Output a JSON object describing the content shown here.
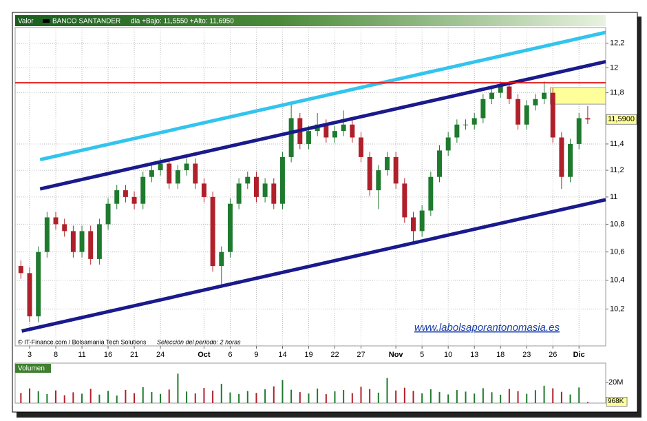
{
  "header": {
    "label": "Valor",
    "name": "BANCO SANTANDER",
    "range": "dia +Bajo: 11,5550 +Alto: 11,6950"
  },
  "footer": {
    "credit": "© IT-Finance.com / Bolsamania Tech Solutions",
    "period": "Selección del período: 2 horas",
    "watermark": "www.labolsaporantonomasia.es"
  },
  "chart_data": {
    "type": "candlestick",
    "x": [
      -1,
      0,
      1,
      2,
      3,
      4,
      5,
      6,
      7,
      8,
      9,
      10,
      11,
      12,
      13,
      14,
      15,
      16,
      17,
      18,
      19,
      20,
      21,
      22,
      23,
      24,
      25,
      26,
      27,
      28,
      29,
      30,
      31,
      32,
      33,
      34,
      35,
      36,
      37,
      38,
      39,
      40,
      41,
      42,
      43,
      44,
      45,
      46,
      47,
      48,
      49,
      50,
      51,
      52,
      53,
      54,
      55,
      56,
      57,
      58,
      59,
      60,
      61,
      62,
      63,
      64
    ],
    "open": [
      10.5,
      10.45,
      10.15,
      10.6,
      10.85,
      10.8,
      10.75,
      10.6,
      10.75,
      10.55,
      10.8,
      10.95,
      11.05,
      11.0,
      10.95,
      11.15,
      11.2,
      11.25,
      11.1,
      11.2,
      11.25,
      11.1,
      11.0,
      10.5,
      10.6,
      10.95,
      11.1,
      11.15,
      11.0,
      11.1,
      10.95,
      11.3,
      11.6,
      11.4,
      11.5,
      11.55,
      11.45,
      11.5,
      11.55,
      11.45,
      11.3,
      11.05,
      11.2,
      11.3,
      11.1,
      10.85,
      10.75,
      10.9,
      11.15,
      11.35,
      11.45,
      11.55,
      11.55,
      11.6,
      11.75,
      11.8,
      11.85,
      11.75,
      11.55,
      11.7,
      11.75,
      11.8,
      11.45,
      11.15,
      11.4,
      11.6
    ],
    "high": [
      10.54,
      10.49,
      10.64,
      10.89,
      10.89,
      10.84,
      10.79,
      10.79,
      10.79,
      10.84,
      10.99,
      11.09,
      11.09,
      11.04,
      11.19,
      11.24,
      11.29,
      11.29,
      11.24,
      11.29,
      11.29,
      11.14,
      11.04,
      10.64,
      10.99,
      11.14,
      11.19,
      11.19,
      11.14,
      11.14,
      11.34,
      11.72,
      11.64,
      11.54,
      11.64,
      11.59,
      11.54,
      11.66,
      11.59,
      11.49,
      11.34,
      11.24,
      11.34,
      11.34,
      11.14,
      10.89,
      10.94,
      11.19,
      11.39,
      11.49,
      11.59,
      11.59,
      11.64,
      11.79,
      11.84,
      11.89,
      11.89,
      11.79,
      11.74,
      11.79,
      11.89,
      11.84,
      11.49,
      11.44,
      11.64,
      11.695
    ],
    "low": [
      10.41,
      10.11,
      10.11,
      10.56,
      10.76,
      10.71,
      10.56,
      10.56,
      10.51,
      10.51,
      10.76,
      10.91,
      10.96,
      10.91,
      10.91,
      11.11,
      11.16,
      11.06,
      11.06,
      11.16,
      11.06,
      10.96,
      10.46,
      10.36,
      10.56,
      10.91,
      11.06,
      10.96,
      10.96,
      10.91,
      10.91,
      11.26,
      11.36,
      11.36,
      11.46,
      11.41,
      11.41,
      11.46,
      11.41,
      11.26,
      11.01,
      10.91,
      11.16,
      11.06,
      10.81,
      10.67,
      10.71,
      10.86,
      11.11,
      11.31,
      11.41,
      11.51,
      11.51,
      11.56,
      11.71,
      11.76,
      11.71,
      11.51,
      11.51,
      11.66,
      11.71,
      11.41,
      11.06,
      11.11,
      11.36,
      11.555
    ],
    "close": [
      10.45,
      10.15,
      10.6,
      10.85,
      10.8,
      10.75,
      10.6,
      10.75,
      10.55,
      10.8,
      10.95,
      11.05,
      11.0,
      10.95,
      11.15,
      11.2,
      11.25,
      11.1,
      11.2,
      11.25,
      11.1,
      11.0,
      10.5,
      10.6,
      10.95,
      11.1,
      11.15,
      11.0,
      11.1,
      10.95,
      11.3,
      11.6,
      11.4,
      11.5,
      11.55,
      11.45,
      11.5,
      11.55,
      11.45,
      11.3,
      11.05,
      11.2,
      11.3,
      11.1,
      10.85,
      10.75,
      10.9,
      11.15,
      11.35,
      11.45,
      11.55,
      11.55,
      11.6,
      11.75,
      11.8,
      11.85,
      11.75,
      11.55,
      11.7,
      11.75,
      11.8,
      11.45,
      11.15,
      11.4,
      11.6,
      11.59
    ],
    "close_label": "11,5900",
    "up_color": "#1f7a2e",
    "down_color": "#b0202a",
    "xlim": [
      -1.66,
      66.06
    ],
    "xticks": [
      {
        "value": 0,
        "label": "3"
      },
      {
        "value": 3,
        "label": "8"
      },
      {
        "value": 6,
        "label": "11"
      },
      {
        "value": 9,
        "label": "16"
      },
      {
        "value": 12,
        "label": "21"
      },
      {
        "value": 15,
        "label": "24"
      },
      {
        "value": 20,
        "label": "Oct"
      },
      {
        "value": 23,
        "label": "6"
      },
      {
        "value": 26,
        "label": "9"
      },
      {
        "value": 29,
        "label": "14"
      },
      {
        "value": 32,
        "label": "19"
      },
      {
        "value": 35,
        "label": "22"
      },
      {
        "value": 38,
        "label": "27"
      },
      {
        "value": 42,
        "label": "Nov"
      },
      {
        "value": 45,
        "label": "5"
      },
      {
        "value": 48,
        "label": "10"
      },
      {
        "value": 51,
        "label": "13"
      },
      {
        "value": 54,
        "label": "18"
      },
      {
        "value": 57,
        "label": "23"
      },
      {
        "value": 60,
        "label": "26"
      },
      {
        "value": 63,
        "label": "Dic"
      }
    ],
    "ylim": [
      9.95,
      12.33
    ],
    "log_scale": true,
    "grid": true,
    "yticks": [
      {
        "value": 10.2,
        "label": "10,2"
      },
      {
        "value": 10.4,
        "label": "10,4"
      },
      {
        "value": 10.6,
        "label": "10,6"
      },
      {
        "value": 10.8,
        "label": "10,8"
      },
      11,
      {
        "value": 11.2,
        "label": "11,2"
      },
      {
        "value": 11.4,
        "label": "11,4"
      },
      {
        "value": 11.8,
        "label": "11,8"
      },
      12,
      {
        "value": 12.2,
        "label": "12,2"
      }
    ],
    "trend_lines": [
      {
        "color": "#33c4ee",
        "from": [
          1.2,
          11.28
        ],
        "to": [
          66.06,
          12.29
        ]
      },
      {
        "color": "#1a1a8c",
        "from": [
          1.2,
          11.06
        ],
        "to": [
          66.06,
          12.05
        ]
      },
      {
        "color": "#1a1a8c",
        "from": [
          -0.9,
          10.05
        ],
        "to": [
          66.06,
          10.98
        ]
      }
    ],
    "hline": {
      "color": "#e31b1b",
      "value": 11.88
    },
    "zone": {
      "color": "#ffff99",
      "x": [
        59.7,
        66.06
      ],
      "y": [
        11.71,
        11.84
      ]
    },
    "volume_label": "Volumen",
    "volume": [
      9800000,
      14200000,
      11500000,
      8700000,
      12300000,
      7600000,
      10400000,
      9100000,
      13800000,
      8200000,
      11900000,
      7300000,
      12800000,
      9600000,
      15400000,
      10700000,
      8900000,
      13100000,
      28500000,
      11200000,
      9400000,
      14600000,
      12100000,
      18700000,
      10300000,
      8800000,
      11700000,
      9900000,
      13300000,
      16200000,
      22400000,
      12900000,
      10600000,
      9300000,
      14100000,
      8600000,
      11400000,
      12700000,
      9700000,
      15800000,
      13600000,
      10100000,
      24300000,
      12200000,
      14900000,
      11800000,
      9500000,
      13400000,
      10800000,
      8400000,
      12600000,
      11100000,
      9200000,
      14400000,
      10500000,
      8100000,
      13700000,
      11600000,
      9000000,
      12500000,
      16800000,
      14300000,
      10900000,
      8300000,
      15100000,
      968000
    ],
    "volume_value_label": "968K",
    "volume_ylim": [
      0,
      38700000
    ],
    "volume_yticks": [
      {
        "value": 20000000,
        "label": "20M"
      }
    ]
  }
}
